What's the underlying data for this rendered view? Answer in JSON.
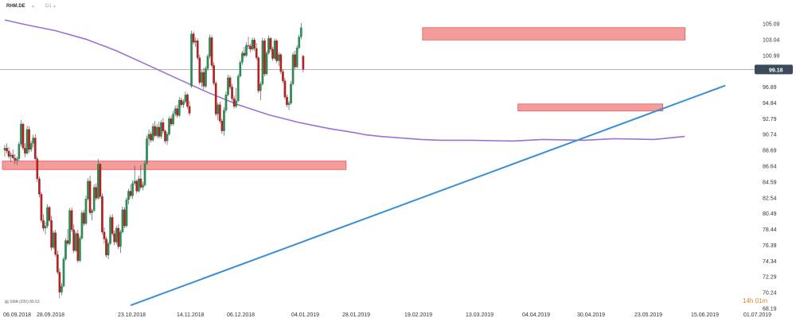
{
  "header": {
    "symbol": "RHM.DE",
    "timeframe": "D1"
  },
  "sma_legend": "SMA (200) 89.63",
  "timer": "14h 01m",
  "colors": {
    "up": "#2e8b57",
    "down": "#b22222",
    "sma": "#9b6fd6",
    "trendline": "#3c8fd4",
    "zone_fill": "#f07b7b",
    "zone_stroke": "#e05a5a",
    "price_line": "#999999",
    "price_badge": "#3b4a5a"
  },
  "chart_data": {
    "type": "candlestick",
    "title": "",
    "price_axis": {
      "ticks": [
        "105.09",
        "103.04",
        "100.99",
        "98.94",
        "96.89",
        "94.84",
        "92.79",
        "90.74",
        "88.69",
        "86.64",
        "84.59",
        "82.54",
        "80.49",
        "78.44",
        "76.39",
        "74.34",
        "72.29",
        "70.24",
        "68.19"
      ],
      "range": [
        68.19,
        106.2
      ]
    },
    "time_axis": {
      "ticks": [
        "06.09.2018",
        "28.09.2018",
        "23.10.2018",
        "14.11.2018",
        "06.12.2018",
        "04.01.2019",
        "28.01.2019",
        "19.02.2019",
        "13.03.2019",
        "04.04.2019",
        "30.04.2019",
        "23.05.2019",
        "15.06.2019",
        "01.07.2019"
      ]
    },
    "current_price": "99.18",
    "ohlc": [
      [
        88.7,
        89.4,
        87.9,
        89.0
      ],
      [
        89.0,
        89.6,
        88.3,
        88.6
      ],
      [
        88.6,
        89.1,
        87.6,
        87.9
      ],
      [
        87.9,
        88.4,
        87.2,
        88.1
      ],
      [
        88.1,
        88.8,
        87.5,
        87.7
      ],
      [
        87.7,
        88.2,
        86.9,
        87.4
      ],
      [
        87.4,
        87.9,
        86.8,
        87.6
      ],
      [
        87.6,
        89.8,
        87.3,
        89.5
      ],
      [
        89.5,
        92.6,
        89.2,
        92.1
      ],
      [
        92.1,
        92.3,
        88.7,
        89.0
      ],
      [
        89.0,
        89.6,
        87.8,
        88.3
      ],
      [
        88.3,
        91.9,
        88.1,
        91.4
      ],
      [
        91.4,
        91.8,
        88.4,
        88.8
      ],
      [
        88.8,
        89.9,
        88.5,
        89.6
      ],
      [
        89.6,
        90.7,
        89.1,
        90.3
      ],
      [
        90.3,
        90.8,
        87.4,
        87.6
      ],
      [
        87.6,
        87.9,
        84.6,
        85.0
      ],
      [
        85.0,
        85.3,
        82.6,
        83.0
      ],
      [
        83.0,
        83.3,
        79.3,
        79.6
      ],
      [
        79.6,
        80.4,
        78.2,
        78.6
      ],
      [
        78.6,
        79.4,
        77.8,
        78.9
      ],
      [
        78.9,
        81.7,
        78.6,
        81.3
      ],
      [
        81.3,
        81.5,
        79.4,
        79.6
      ],
      [
        79.6,
        80.2,
        75.7,
        76.1
      ],
      [
        76.1,
        78.3,
        75.9,
        78.0
      ],
      [
        78.0,
        78.4,
        74.9,
        75.2
      ],
      [
        75.2,
        75.7,
        72.6,
        72.9
      ],
      [
        72.9,
        73.4,
        69.5,
        70.3
      ],
      [
        70.3,
        71.5,
        69.9,
        71.1
      ],
      [
        71.1,
        74.9,
        70.9,
        74.6
      ],
      [
        74.6,
        77.3,
        74.4,
        77.0
      ],
      [
        77.0,
        78.5,
        76.3,
        76.6
      ],
      [
        76.6,
        81.2,
        76.4,
        80.9
      ],
      [
        80.9,
        81.3,
        78.1,
        78.4
      ],
      [
        78.4,
        79.1,
        75.4,
        75.7
      ],
      [
        75.7,
        78.2,
        75.5,
        77.9
      ],
      [
        77.9,
        78.4,
        74.1,
        74.4
      ],
      [
        74.4,
        77.6,
        74.2,
        77.3
      ],
      [
        77.3,
        80.9,
        77.1,
        80.6
      ],
      [
        80.6,
        81.0,
        78.9,
        79.2
      ],
      [
        79.2,
        82.8,
        79.0,
        82.4
      ],
      [
        82.4,
        85.1,
        82.2,
        84.7
      ],
      [
        84.7,
        85.4,
        80.3,
        80.6
      ],
      [
        80.6,
        81.1,
        79.6,
        80.9
      ],
      [
        80.9,
        84.3,
        80.7,
        83.9
      ],
      [
        83.9,
        84.4,
        82.2,
        82.5
      ],
      [
        82.5,
        87.6,
        82.3,
        86.9
      ],
      [
        86.9,
        87.1,
        82.4,
        82.7
      ],
      [
        82.7,
        83.1,
        77.8,
        78.1
      ],
      [
        78.1,
        78.7,
        76.6,
        77.2
      ],
      [
        77.2,
        77.5,
        74.8,
        75.1
      ],
      [
        75.1,
        76.9,
        74.6,
        76.6
      ],
      [
        76.6,
        80.3,
        76.4,
        80.0
      ],
      [
        80.0,
        80.4,
        77.6,
        77.9
      ],
      [
        77.9,
        78.3,
        76.4,
        76.8
      ],
      [
        76.8,
        78.9,
        76.5,
        78.6
      ],
      [
        78.6,
        79.1,
        75.9,
        76.2
      ],
      [
        76.2,
        78.4,
        75.4,
        78.1
      ],
      [
        78.1,
        81.4,
        77.9,
        81.0
      ],
      [
        81.0,
        81.3,
        78.6,
        78.9
      ],
      [
        78.9,
        82.6,
        78.7,
        82.3
      ],
      [
        82.3,
        83.7,
        81.7,
        83.4
      ],
      [
        83.4,
        84.3,
        82.5,
        82.8
      ],
      [
        82.8,
        84.8,
        82.4,
        84.4
      ],
      [
        84.4,
        86.7,
        84.1,
        84.7
      ],
      [
        84.7,
        84.9,
        83.1,
        83.4
      ],
      [
        83.4,
        85.4,
        83.2,
        85.0
      ],
      [
        85.0,
        86.8,
        83.6,
        83.9
      ],
      [
        83.9,
        84.6,
        83.5,
        84.2
      ],
      [
        84.2,
        87.4,
        84.0,
        87.0
      ],
      [
        87.0,
        90.6,
        86.8,
        90.2
      ],
      [
        90.2,
        91.4,
        89.3,
        90.8
      ],
      [
        90.8,
        91.1,
        89.7,
        90.0
      ],
      [
        90.0,
        92.2,
        89.8,
        91.8
      ],
      [
        91.8,
        92.5,
        90.4,
        90.6
      ],
      [
        90.6,
        92.1,
        90.3,
        91.7
      ],
      [
        91.7,
        92.4,
        90.2,
        90.5
      ],
      [
        90.5,
        92.6,
        90.2,
        92.3
      ],
      [
        92.3,
        92.9,
        90.9,
        91.2
      ],
      [
        91.2,
        91.4,
        89.6,
        89.9
      ],
      [
        89.9,
        91.1,
        89.4,
        90.8
      ],
      [
        90.8,
        93.1,
        90.6,
        92.8
      ],
      [
        92.8,
        93.2,
        91.8,
        92.1
      ],
      [
        92.1,
        93.8,
        91.9,
        93.4
      ],
      [
        93.4,
        94.5,
        93.1,
        94.1
      ],
      [
        94.1,
        94.6,
        92.9,
        93.2
      ],
      [
        93.2,
        95.6,
        93.0,
        95.2
      ],
      [
        95.2,
        95.5,
        94.3,
        94.6
      ],
      [
        94.6,
        95.3,
        94.2,
        95.0
      ],
      [
        95.0,
        96.3,
        94.8,
        95.9
      ],
      [
        95.9,
        96.1,
        94.1,
        94.4
      ],
      [
        94.4,
        95.1,
        93.2,
        93.5
      ],
      [
        97.0,
        104.2,
        96.8,
        103.8
      ],
      [
        103.8,
        104.1,
        102.4,
        102.7
      ],
      [
        102.7,
        103.3,
        102.1,
        102.9
      ],
      [
        102.9,
        103.2,
        100.4,
        100.7
      ],
      [
        100.7,
        101.1,
        97.2,
        97.5
      ],
      [
        97.5,
        99.1,
        96.9,
        98.8
      ],
      [
        98.8,
        99.4,
        96.6,
        97.0
      ],
      [
        97.0,
        99.6,
        96.8,
        99.3
      ],
      [
        99.3,
        101.2,
        99.0,
        100.9
      ],
      [
        100.9,
        103.7,
        100.6,
        103.3
      ],
      [
        103.3,
        103.6,
        99.4,
        99.7
      ],
      [
        99.7,
        100.1,
        97.1,
        97.4
      ],
      [
        97.4,
        97.7,
        93.1,
        93.4
      ],
      [
        93.4,
        94.9,
        92.6,
        94.6
      ],
      [
        94.6,
        95.0,
        92.2,
        92.5
      ],
      [
        92.5,
        92.8,
        90.8,
        91.2
      ],
      [
        91.2,
        94.3,
        90.6,
        93.9
      ],
      [
        93.9,
        96.3,
        93.6,
        95.9
      ],
      [
        95.9,
        98.5,
        95.7,
        98.1
      ],
      [
        98.1,
        98.4,
        96.6,
        96.9
      ],
      [
        96.9,
        97.3,
        95.1,
        95.4
      ],
      [
        95.4,
        95.8,
        94.1,
        94.4
      ],
      [
        94.4,
        96.8,
        94.2,
        95.1
      ],
      [
        95.1,
        98.6,
        94.9,
        98.3
      ],
      [
        98.3,
        100.4,
        98.1,
        100.1
      ],
      [
        100.1,
        101.6,
        99.8,
        101.3
      ],
      [
        101.3,
        102.1,
        100.7,
        101.0
      ],
      [
        101.0,
        102.7,
        100.8,
        102.3
      ],
      [
        102.3,
        103.4,
        101.8,
        102.2
      ],
      [
        102.2,
        102.5,
        101.4,
        101.8
      ],
      [
        101.8,
        103.3,
        101.6,
        103.0
      ],
      [
        103.0,
        103.3,
        101.6,
        101.9
      ],
      [
        101.9,
        102.6,
        100.4,
        100.7
      ],
      [
        100.7,
        100.9,
        96.1,
        96.4
      ],
      [
        96.4,
        97.6,
        95.2,
        97.3
      ],
      [
        97.3,
        103.3,
        97.1,
        102.9
      ],
      [
        102.9,
        103.2,
        98.3,
        98.6
      ],
      [
        98.6,
        101.6,
        98.4,
        101.3
      ],
      [
        101.3,
        103.6,
        101.1,
        103.2
      ],
      [
        103.2,
        103.4,
        101.5,
        101.8
      ],
      [
        101.8,
        102.1,
        100.3,
        100.6
      ],
      [
        100.6,
        103.2,
        100.4,
        102.9
      ],
      [
        102.9,
        103.1,
        100.0,
        100.3
      ],
      [
        100.3,
        101.4,
        99.6,
        101.1
      ],
      [
        101.1,
        101.3,
        98.6,
        98.9
      ],
      [
        98.9,
        99.2,
        97.4,
        97.7
      ],
      [
        97.7,
        98.1,
        95.3,
        95.6
      ],
      [
        95.6,
        95.9,
        94.3,
        94.6
      ],
      [
        94.6,
        95.1,
        93.9,
        94.8
      ],
      [
        94.8,
        97.7,
        94.6,
        97.3
      ],
      [
        97.3,
        101.4,
        97.1,
        101.1
      ],
      [
        101.1,
        101.6,
        99.2,
        99.5
      ],
      [
        99.5,
        102.3,
        99.3,
        102.0
      ],
      [
        102.0,
        103.7,
        101.8,
        103.4
      ],
      [
        103.4,
        105.2,
        103.1,
        104.6
      ],
      [
        100.9,
        101.1,
        98.8,
        99.2
      ]
    ],
    "sma200": [
      [
        0,
        105.6
      ],
      [
        10,
        105.0
      ],
      [
        25,
        104.2
      ],
      [
        40,
        103.1
      ],
      [
        55,
        101.6
      ],
      [
        70,
        99.8
      ],
      [
        85,
        98.0
      ],
      [
        100,
        96.2
      ],
      [
        115,
        94.6
      ],
      [
        130,
        93.3
      ],
      [
        145,
        92.3
      ],
      [
        160,
        91.5
      ],
      [
        172,
        91.0
      ],
      [
        178,
        90.7
      ],
      [
        185,
        90.5
      ],
      [
        195,
        90.3
      ],
      [
        205,
        90.1
      ],
      [
        215,
        90.0
      ],
      [
        230,
        90.0
      ],
      [
        250,
        89.9
      ],
      [
        265,
        90.1
      ],
      [
        285,
        90.0
      ],
      [
        300,
        90.2
      ],
      [
        320,
        90.1
      ],
      [
        335,
        90.5
      ]
    ],
    "zones": [
      {
        "from": 0,
        "to": 167,
        "low": 86.2,
        "high": 87.3
      },
      {
        "from": 207,
        "to": 334,
        "low": 103.0,
        "high": 104.6
      },
      {
        "from": 254,
        "to": 323,
        "low": 93.8,
        "high": 94.7
      }
    ],
    "trendline": {
      "x": [
        62,
        355
      ],
      "y": [
        68.6,
        97.1
      ]
    }
  }
}
